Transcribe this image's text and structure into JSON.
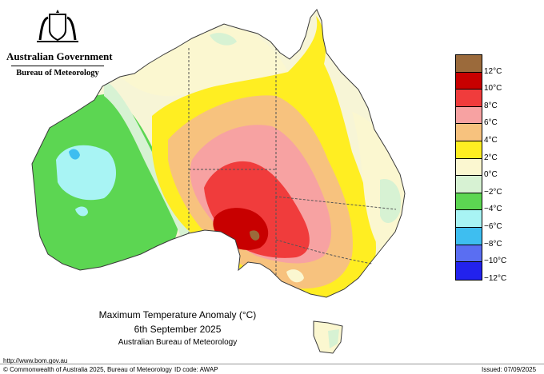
{
  "header": {
    "government": "Australian Government",
    "agency": "Bureau of Meteorology"
  },
  "map": {
    "region": "Australia",
    "colors": {
      "outside": "#ffffff",
      "land_base": "#f7f5d6",
      "state_border": "#555555",
      "coast": "#3a3a3a"
    }
  },
  "legend": {
    "unit": "°C",
    "top_swatch_color": "#9b6a3b",
    "levels": [
      {
        "label": "12°C",
        "color": "#c80000"
      },
      {
        "label": "10°C",
        "color": "#f03c3c"
      },
      {
        "label": "8°C",
        "color": "#f7a2a2"
      },
      {
        "label": "6°C",
        "color": "#f7c27e"
      },
      {
        "label": "4°C",
        "color": "#ffee22"
      },
      {
        "label": "2°C",
        "color": "#fbf7d0"
      },
      {
        "label": "0°C",
        "color": "#d7f2d3"
      },
      {
        "label": "−2°C",
        "color": "#5cd652"
      },
      {
        "label": "−4°C",
        "color": "#a8f4f4"
      },
      {
        "label": "−6°C",
        "color": "#3ebef0"
      },
      {
        "label": "−8°C",
        "color": "#5a6ef2"
      },
      {
        "label": "−10°C",
        "color": "#2222ee"
      },
      {
        "label": "−12°C",
        "color": null
      }
    ]
  },
  "caption": {
    "title": "Maximum Temperature Anomaly (°C)",
    "date": "6th September 2025",
    "agency": "Australian Bureau of Meteorology"
  },
  "footer": {
    "url": "http://www.bom.gov.au",
    "copyright": "© Commonwealth of Australia 2025, Bureau of Meteorology",
    "id_code": "ID code: AWAP",
    "issued": "Issued: 07/09/2025"
  }
}
